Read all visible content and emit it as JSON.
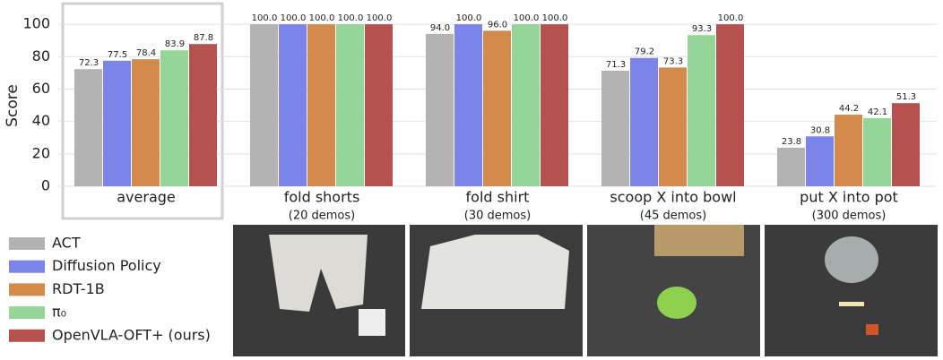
{
  "chart_data": {
    "type": "bar",
    "ylabel": "Score",
    "categories": [
      "average",
      "fold shorts",
      "fold shirt",
      "scoop X into bowl",
      "put X into pot"
    ],
    "category_notes": [
      null,
      "(20 demos)",
      "(30 demos)",
      "(45 demos)",
      "(300 demos)"
    ],
    "series": [
      {
        "name": "ACT",
        "color": "#b3b3b3",
        "values": [
          72.3,
          100,
          94,
          71.3,
          23.8
        ],
        "value_labels": [
          "72.3",
          "100.0",
          "94.0",
          "71.3",
          "23.8"
        ]
      },
      {
        "name": "Diffusion Policy",
        "color": "#7b84e9",
        "values": [
          77.5,
          100,
          100,
          79.2,
          30.8
        ],
        "value_labels": [
          "77.5",
          "100.0",
          "100.0",
          "79.2",
          "30.8"
        ]
      },
      {
        "name": "RDT-1B",
        "color": "#d48a4b",
        "values": [
          78.4,
          100,
          96,
          73.3,
          44.2
        ],
        "value_labels": [
          "78.4",
          "100.0",
          "96.0",
          "73.3",
          "44.2"
        ]
      },
      {
        "name": "π₀",
        "color": "#96d598",
        "values": [
          83.9,
          100,
          100,
          93.3,
          42.1
        ],
        "value_labels": [
          "83.9",
          "100.0",
          "100.0",
          "93.3",
          "42.1"
        ]
      },
      {
        "name": "OpenVLA-OFT+ (ours)",
        "color": "#b5514f",
        "values": [
          87.8,
          100,
          100,
          100,
          51.3
        ],
        "value_labels": [
          "87.8",
          "100.0",
          "100.0",
          "100.0",
          "51.3"
        ]
      }
    ],
    "ylim": [
      0,
      110
    ],
    "yticks": [
      0,
      20,
      40,
      60,
      80,
      100
    ],
    "grid": true
  }
}
